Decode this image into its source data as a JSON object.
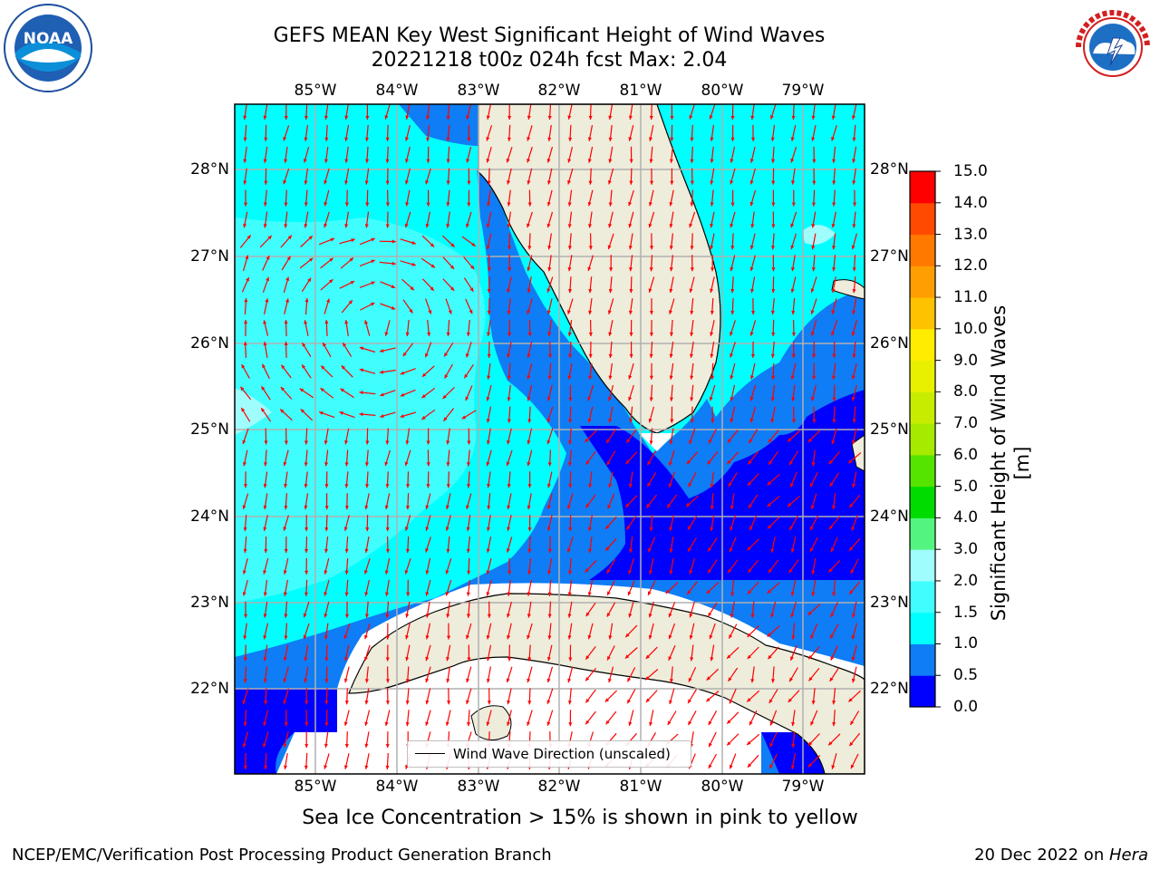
{
  "title": {
    "line1": "GEFS MEAN Key West Significant Height of Wind Waves",
    "line2": "20221218 t00z 024h fcst   Max: 2.04"
  },
  "logos": {
    "left": {
      "name": "NOAA",
      "ring_text": "NATIONAL OCEANIC AND ATMOSPHERIC ADMINISTRATION · U.S. DEPARTMENT OF COMMERCE"
    },
    "right": {
      "name": "NATIONAL WEATHER SERVICE"
    }
  },
  "map": {
    "lon_labels": [
      "85°W",
      "84°W",
      "83°W",
      "82°W",
      "81°W",
      "80°W",
      "79°W"
    ],
    "lat_labels": [
      "28°N",
      "27°N",
      "26°N",
      "25°N",
      "24°N",
      "23°N",
      "22°N"
    ],
    "lon_range": [
      -86.0,
      -78.3
    ],
    "lat_range": [
      21.1,
      28.75
    ],
    "land_color": "#eeecdb",
    "arrow_color": "#ff0000",
    "grid_color": "#b0b0b0"
  },
  "colorbar": {
    "title": "Significant Height of Wind Waves [m]",
    "tick_labels": [
      "0.0",
      "0.5",
      "1.0",
      "1.5",
      "2.0",
      "3.0",
      "4.0",
      "5.0",
      "6.0",
      "7.0",
      "8.0",
      "9.0",
      "10.0",
      "11.0",
      "12.0",
      "13.0",
      "14.0",
      "15.0"
    ],
    "colors": [
      "#0000ff",
      "#0f7df5",
      "#00ffff",
      "#40fefe",
      "#a0fdfd",
      "#53f580",
      "#00dc00",
      "#55e400",
      "#a6ea00",
      "#c8ec00",
      "#e8f000",
      "#ffec00",
      "#ffc200",
      "#ff9e00",
      "#ff7800",
      "#ff4a00",
      "#ff0000"
    ]
  },
  "legend": {
    "label": "Wind Wave Direction (unscaled)"
  },
  "notes": {
    "ice": "Sea Ice Concentration > 15% is shown in pink to yellow",
    "footer_left": "NCEP/EMC/Verification Post Processing Product Generation Branch",
    "footer_date": "20 Dec 2022 on ",
    "footer_host": "Hera"
  }
}
